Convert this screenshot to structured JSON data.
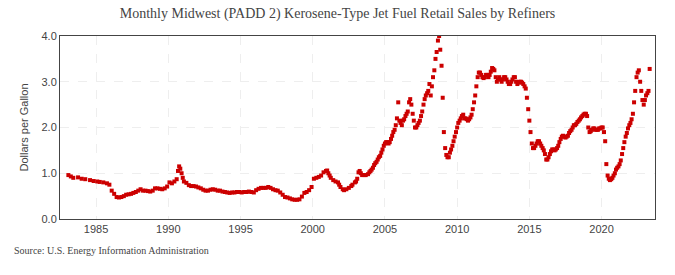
{
  "chart_data": {
    "type": "scatter",
    "title": "Monthly Midwest (PADD 2) Kerosene-Type Jet Fuel Retail Sales by Refiners",
    "ylabel": "Dollars per Gallon",
    "annotations": [
      "Source: U.S. Energy Information Administration"
    ],
    "color": "#cc0000",
    "marker": "square",
    "grid": true,
    "xlim": [
      1982.5,
      2023.7
    ],
    "xticks": [
      1985,
      1990,
      1995,
      2000,
      2005,
      2010,
      2015,
      2020
    ],
    "ylim": [
      0.0,
      4.0
    ],
    "yticks": [
      {
        "value": 0.0,
        "label": "0.0"
      },
      {
        "value": 1.0,
        "label": "1.0"
      },
      {
        "value": 2.0,
        "label": "2.0"
      },
      {
        "value": 3.0,
        "label": "3.0"
      },
      {
        "value": 4.0,
        "label": "4.0"
      }
    ],
    "x": [
      1983.08,
      1983.25,
      1983.42,
      1983.75,
      1984.0,
      1984.25,
      1984.58,
      1984.83,
      1985.08,
      1985.25,
      1985.5,
      1985.75,
      1985.92,
      1986.08,
      1986.25,
      1986.42,
      1986.58,
      1986.75,
      1986.92,
      1987.08,
      1987.25,
      1987.42,
      1987.58,
      1987.75,
      1987.92,
      1988.08,
      1988.25,
      1988.42,
      1988.58,
      1988.75,
      1988.92,
      1989.08,
      1989.25,
      1989.42,
      1989.58,
      1989.75,
      1989.92,
      1990.08,
      1990.25,
      1990.42,
      1990.58,
      1990.67,
      1990.75,
      1990.83,
      1990.92,
      1991.0,
      1991.08,
      1991.25,
      1991.42,
      1991.58,
      1991.75,
      1991.92,
      1992.08,
      1992.25,
      1992.42,
      1992.58,
      1992.75,
      1992.92,
      1993.08,
      1993.25,
      1993.42,
      1993.58,
      1993.75,
      1993.92,
      1994.08,
      1994.25,
      1994.42,
      1994.58,
      1994.75,
      1994.92,
      1995.08,
      1995.25,
      1995.42,
      1995.58,
      1995.75,
      1995.92,
      1996.08,
      1996.25,
      1996.42,
      1996.58,
      1996.75,
      1996.92,
      1997.08,
      1997.25,
      1997.42,
      1997.58,
      1997.75,
      1997.92,
      1998.08,
      1998.25,
      1998.42,
      1998.58,
      1998.75,
      1998.92,
      1999.08,
      1999.25,
      1999.42,
      1999.58,
      1999.75,
      1999.92,
      2000.08,
      2000.25,
      2000.42,
      2000.58,
      2000.75,
      2000.92,
      2001.0,
      2001.08,
      2001.17,
      2001.25,
      2001.42,
      2001.58,
      2001.75,
      2001.83,
      2001.92,
      2002.08,
      2002.17,
      2002.33,
      2002.5,
      2002.67,
      2002.75,
      2002.92,
      2003.0,
      2003.08,
      2003.17,
      2003.25,
      2003.33,
      2003.42,
      2003.58,
      2003.67,
      2003.83,
      2003.92,
      2004.0,
      2004.08,
      2004.17,
      2004.25,
      2004.33,
      2004.42,
      2004.5,
      2004.58,
      2004.67,
      2004.75,
      2004.83,
      2004.92,
      2005.0,
      2005.08,
      2005.17,
      2005.25,
      2005.33,
      2005.42,
      2005.5,
      2005.58,
      2005.67,
      2005.75,
      2005.83,
      2005.92,
      2006.0,
      2006.08,
      2006.17,
      2006.25,
      2006.33,
      2006.42,
      2006.5,
      2006.58,
      2006.67,
      2006.75,
      2006.83,
      2006.92,
      2007.0,
      2007.08,
      2007.17,
      2007.25,
      2007.33,
      2007.42,
      2007.5,
      2007.58,
      2007.67,
      2007.75,
      2007.83,
      2007.92,
      2008.0,
      2008.08,
      2008.17,
      2008.25,
      2008.33,
      2008.42,
      2008.5,
      2008.58,
      2008.67,
      2008.75,
      2008.83,
      2008.92,
      2009.0,
      2009.08,
      2009.17,
      2009.25,
      2009.33,
      2009.42,
      2009.5,
      2009.58,
      2009.67,
      2009.75,
      2009.83,
      2009.92,
      2010.0,
      2010.08,
      2010.17,
      2010.25,
      2010.33,
      2010.42,
      2010.5,
      2010.58,
      2010.67,
      2010.75,
      2010.83,
      2010.92,
      2011.0,
      2011.08,
      2011.17,
      2011.25,
      2011.33,
      2011.42,
      2011.5,
      2011.58,
      2011.67,
      2011.75,
      2011.83,
      2011.92,
      2012.0,
      2012.08,
      2012.17,
      2012.25,
      2012.33,
      2012.42,
      2012.5,
      2012.58,
      2012.67,
      2012.75,
      2012.83,
      2012.92,
      2013.0,
      2013.08,
      2013.17,
      2013.25,
      2013.33,
      2013.42,
      2013.5,
      2013.58,
      2013.67,
      2013.75,
      2013.83,
      2013.92,
      2014.0,
      2014.08,
      2014.17,
      2014.25,
      2014.33,
      2014.42,
      2014.5,
      2014.58,
      2014.67,
      2014.75,
      2014.83,
      2014.92,
      2015.0,
      2015.08,
      2015.17,
      2015.25,
      2015.33,
      2015.42,
      2015.5,
      2015.58,
      2015.67,
      2015.75,
      2015.83,
      2015.92,
      2016.0,
      2016.08,
      2016.17,
      2016.25,
      2016.33,
      2016.42,
      2016.5,
      2016.58,
      2016.67,
      2016.75,
      2016.83,
      2016.92,
      2017.0,
      2017.08,
      2017.17,
      2017.25,
      2017.33,
      2017.42,
      2017.5,
      2017.58,
      2017.67,
      2017.75,
      2017.83,
      2017.92,
      2018.0,
      2018.08,
      2018.17,
      2018.25,
      2018.33,
      2018.42,
      2018.5,
      2018.58,
      2018.67,
      2018.75,
      2018.83,
      2018.92,
      2019.0,
      2019.08,
      2019.17,
      2019.25,
      2019.33,
      2019.42,
      2019.5,
      2019.58,
      2019.67,
      2019.75,
      2019.83,
      2019.92,
      2020.0,
      2020.08,
      2020.17,
      2020.25,
      2020.33,
      2020.42,
      2020.5,
      2020.58,
      2020.67,
      2020.75,
      2020.83,
      2020.92,
      2021.0,
      2021.08,
      2021.17,
      2021.25,
      2021.33,
      2021.42,
      2021.5,
      2021.58,
      2021.67,
      2021.75,
      2021.83,
      2021.92,
      2022.0,
      2022.08,
      2022.17,
      2022.25,
      2022.33,
      2022.42,
      2022.5,
      2022.58,
      2022.67,
      2022.75,
      2022.83,
      2022.92,
      2023.0,
      2023.08,
      2023.17,
      2023.25,
      2023.33
    ],
    "values": [
      0.96,
      0.93,
      0.9,
      0.91,
      0.88,
      0.87,
      0.85,
      0.83,
      0.82,
      0.81,
      0.8,
      0.78,
      0.75,
      0.62,
      0.55,
      0.48,
      0.47,
      0.48,
      0.5,
      0.53,
      0.54,
      0.55,
      0.57,
      0.59,
      0.62,
      0.65,
      0.62,
      0.62,
      0.61,
      0.6,
      0.62,
      0.67,
      0.67,
      0.66,
      0.65,
      0.67,
      0.71,
      0.8,
      0.78,
      0.82,
      0.87,
      1.05,
      1.15,
      1.1,
      1.0,
      0.9,
      0.82,
      0.79,
      0.74,
      0.72,
      0.72,
      0.71,
      0.69,
      0.67,
      0.64,
      0.62,
      0.62,
      0.64,
      0.65,
      0.64,
      0.62,
      0.62,
      0.6,
      0.59,
      0.58,
      0.57,
      0.58,
      0.58,
      0.59,
      0.59,
      0.58,
      0.59,
      0.59,
      0.6,
      0.59,
      0.58,
      0.63,
      0.66,
      0.68,
      0.68,
      0.68,
      0.7,
      0.68,
      0.65,
      0.63,
      0.62,
      0.58,
      0.53,
      0.48,
      0.47,
      0.45,
      0.43,
      0.42,
      0.42,
      0.43,
      0.49,
      0.57,
      0.59,
      0.63,
      0.7,
      0.88,
      0.9,
      0.92,
      0.95,
      1.02,
      1.05,
      1.06,
      1.0,
      0.95,
      0.9,
      0.85,
      0.82,
      0.8,
      0.75,
      0.7,
      0.65,
      0.63,
      0.65,
      0.68,
      0.72,
      0.75,
      0.8,
      0.82,
      0.88,
      1.02,
      1.05,
      1.0,
      0.96,
      0.96,
      0.96,
      0.98,
      1.02,
      1.05,
      1.08,
      1.12,
      1.18,
      1.22,
      1.25,
      1.3,
      1.35,
      1.38,
      1.45,
      1.52,
      1.6,
      1.65,
      1.68,
      1.68,
      1.65,
      1.68,
      1.75,
      1.82,
      1.9,
      1.95,
      2.05,
      2.2,
      2.55,
      2.15,
      2.1,
      2.05,
      2.15,
      2.18,
      2.25,
      2.3,
      2.35,
      2.55,
      2.62,
      2.5,
      2.3,
      2.15,
      2.0,
      2.0,
      2.05,
      2.1,
      2.15,
      2.25,
      2.35,
      2.5,
      2.62,
      2.7,
      2.75,
      2.8,
      2.95,
      2.7,
      2.9,
      3.1,
      3.25,
      3.5,
      3.65,
      3.9,
      4.0,
      3.7,
      3.35,
      2.65,
      1.9,
      1.55,
      1.4,
      1.35,
      1.35,
      1.45,
      1.52,
      1.6,
      1.7,
      1.8,
      1.9,
      2.0,
      2.1,
      2.15,
      2.2,
      2.25,
      2.28,
      2.2,
      2.2,
      2.18,
      2.15,
      2.18,
      2.22,
      2.28,
      2.4,
      2.55,
      2.7,
      2.9,
      3.1,
      3.2,
      3.2,
      3.15,
      3.1,
      3.08,
      3.1,
      3.15,
      3.15,
      3.1,
      3.15,
      3.22,
      3.3,
      3.28,
      3.25,
      3.1,
      3.0,
      3.05,
      3.1,
      3.05,
      3.0,
      3.05,
      3.1,
      3.1,
      3.05,
      3.0,
      2.95,
      2.95,
      3.0,
      3.05,
      3.1,
      3.1,
      3.0,
      2.95,
      2.98,
      3.0,
      3.0,
      2.98,
      2.95,
      2.9,
      2.85,
      2.65,
      2.4,
      2.15,
      1.9,
      1.65,
      1.55,
      1.55,
      1.6,
      1.65,
      1.7,
      1.7,
      1.65,
      1.6,
      1.55,
      1.5,
      1.42,
      1.3,
      1.3,
      1.35,
      1.42,
      1.48,
      1.52,
      1.52,
      1.5,
      1.52,
      1.55,
      1.6,
      1.68,
      1.75,
      1.8,
      1.82,
      1.8,
      1.78,
      1.8,
      1.82,
      1.88,
      1.92,
      1.95,
      2.0,
      2.05,
      2.05,
      2.08,
      2.12,
      2.15,
      2.18,
      2.22,
      2.25,
      2.28,
      2.3,
      2.3,
      2.25,
      2.0,
      1.9,
      1.92,
      1.95,
      1.98,
      1.98,
      1.95,
      1.95,
      1.95,
      1.98,
      1.98,
      2.0,
      2.0,
      1.9,
      1.7,
      1.2,
      0.95,
      0.88,
      0.85,
      0.87,
      0.9,
      0.95,
      1.0,
      1.08,
      1.12,
      1.15,
      1.2,
      1.28,
      1.42,
      1.55,
      1.68,
      1.8,
      1.88,
      1.98,
      2.05,
      2.1,
      2.18,
      2.3,
      2.55,
      2.8,
      3.1,
      3.2,
      3.25,
      3.0,
      2.8,
      2.6,
      2.5,
      2.6,
      2.7,
      2.75,
      2.8,
      3.28
    ]
  }
}
